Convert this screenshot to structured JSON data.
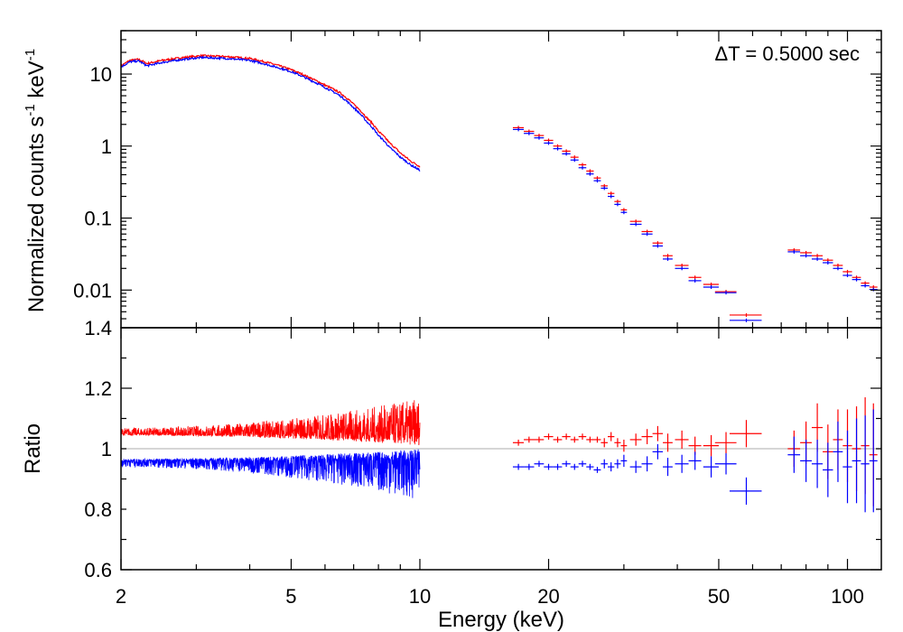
{
  "chart_data": [
    {
      "type": "scatter",
      "panel": "spectrum",
      "ylabel_main": "Normalized counts s",
      "ylabel_sup1": "-1",
      "ylabel_mid": " keV",
      "ylabel_sup2": "-1",
      "annotation": "ΔT = 0.5000 sec",
      "x_scale": "log",
      "y_scale": "log",
      "xlim": [
        2,
        120
      ],
      "ylim": [
        0.003,
        40
      ],
      "yticks": [
        0.01,
        0.1,
        1,
        10
      ],
      "ytick_labels": [
        "0.01",
        "0.1",
        "1",
        "10"
      ],
      "bottom_label": "1.4",
      "colors": {
        "red": "#ff0000",
        "blue": "#0000ff"
      },
      "series": [
        {
          "color": "red",
          "curve_x": [
            2.0,
            2.1,
            2.2,
            2.3,
            2.5,
            2.8,
            3.1,
            3.5,
            4.0,
            4.5,
            5.0,
            5.5,
            6.0,
            6.5,
            7.0,
            7.5,
            8.0,
            8.5,
            9.0,
            9.5,
            10.0
          ],
          "curve_y": [
            13.0,
            15.5,
            16.0,
            14.0,
            15.5,
            17.0,
            18.0,
            17.5,
            16.5,
            14.0,
            11.5,
            9.0,
            7.0,
            5.5,
            3.8,
            2.5,
            1.6,
            1.1,
            0.8,
            0.62,
            0.52
          ],
          "bins_x": [
            17,
            18,
            19,
            20,
            21,
            22,
            23,
            24,
            25,
            26,
            27,
            28,
            29,
            30,
            32,
            34,
            36,
            38,
            41,
            44,
            48,
            52,
            58,
            75,
            80,
            85,
            90,
            95,
            100,
            105,
            110,
            115
          ],
          "bins_xerr": [
            0.5,
            0.5,
            0.5,
            0.5,
            0.5,
            0.5,
            0.5,
            0.5,
            0.5,
            0.5,
            0.5,
            0.5,
            0.5,
            0.5,
            1,
            1,
            1,
            1,
            1.5,
            1.5,
            2,
            3,
            5,
            2.5,
            2.5,
            2.5,
            2.5,
            2.5,
            2.5,
            2.5,
            2.5,
            2.5
          ],
          "bins_y": [
            1.8,
            1.6,
            1.4,
            1.2,
            1.0,
            0.85,
            0.7,
            0.55,
            0.45,
            0.36,
            0.28,
            0.22,
            0.17,
            0.13,
            0.09,
            0.065,
            0.045,
            0.03,
            0.022,
            0.015,
            0.012,
            0.0095,
            0.0045,
            0.036,
            0.033,
            0.03,
            0.026,
            0.022,
            0.018,
            0.015,
            0.0125,
            0.011
          ]
        },
        {
          "color": "blue",
          "curve_x": [
            2.0,
            2.1,
            2.2,
            2.3,
            2.5,
            2.8,
            3.1,
            3.5,
            4.0,
            4.5,
            5.0,
            5.5,
            6.0,
            6.5,
            7.0,
            7.5,
            8.0,
            8.5,
            9.0,
            9.5,
            10.0
          ],
          "curve_y": [
            12.5,
            14.8,
            15.2,
            13.0,
            14.5,
            16.0,
            17.0,
            16.5,
            15.5,
            13.0,
            10.8,
            8.4,
            6.5,
            5.0,
            3.4,
            2.2,
            1.4,
            0.95,
            0.7,
            0.55,
            0.46
          ],
          "bins_x": [
            17,
            18,
            19,
            20,
            21,
            22,
            23,
            24,
            25,
            26,
            27,
            28,
            29,
            30,
            32,
            34,
            36,
            38,
            41,
            44,
            48,
            52,
            58,
            75,
            80,
            85,
            90,
            95,
            100,
            105,
            110,
            115
          ],
          "bins_xerr": [
            0.5,
            0.5,
            0.5,
            0.5,
            0.5,
            0.5,
            0.5,
            0.5,
            0.5,
            0.5,
            0.5,
            0.5,
            0.5,
            0.5,
            1,
            1,
            1,
            1,
            1.5,
            1.5,
            2,
            3,
            5,
            2.5,
            2.5,
            2.5,
            2.5,
            2.5,
            2.5,
            2.5,
            2.5,
            2.5
          ],
          "bins_y": [
            1.7,
            1.5,
            1.3,
            1.1,
            0.92,
            0.78,
            0.64,
            0.5,
            0.41,
            0.33,
            0.26,
            0.2,
            0.155,
            0.12,
            0.082,
            0.06,
            0.041,
            0.027,
            0.02,
            0.0135,
            0.011,
            0.0092,
            0.0038,
            0.034,
            0.03,
            0.027,
            0.024,
            0.02,
            0.016,
            0.014,
            0.0115,
            0.0102
          ]
        }
      ]
    },
    {
      "type": "scatter",
      "panel": "ratio",
      "ylabel": "Ratio",
      "xlabel": "Energy (keV)",
      "x_scale": "log",
      "xlim": [
        2,
        120
      ],
      "ylim": [
        0.6,
        1.4
      ],
      "yticks": [
        0.6,
        0.8,
        1,
        1.2
      ],
      "ytick_labels": [
        "0.6",
        "0.8",
        "1",
        "1.2"
      ],
      "xticks": [
        2,
        5,
        10,
        20,
        50,
        100
      ],
      "xtick_labels": [
        "2",
        "5",
        "10",
        "20",
        "50",
        "100"
      ],
      "reference_line": 1.0,
      "reference_color": "#c8c8c8",
      "band_x_range": [
        2,
        10
      ],
      "series": [
        {
          "color": "red",
          "band_center": 1.05,
          "band_spread_low": 0.03,
          "band_spread_high": 0.09,
          "bins_x": [
            17,
            18,
            19,
            20,
            21,
            22,
            23,
            24,
            25,
            26,
            27,
            28,
            29,
            30,
            32,
            34,
            36,
            38,
            41,
            44,
            48,
            52,
            58,
            75,
            80,
            85,
            90,
            95,
            100,
            105,
            110,
            115
          ],
          "bins_xerr": [
            0.5,
            0.5,
            0.5,
            0.5,
            0.5,
            0.5,
            0.5,
            0.5,
            0.5,
            0.5,
            0.5,
            0.5,
            0.5,
            0.5,
            1,
            1,
            1,
            1,
            1.5,
            1.5,
            2,
            3,
            5,
            2.5,
            2.5,
            2.5,
            2.5,
            2.5,
            2.5,
            2.5,
            2.5,
            2.5
          ],
          "bins_y": [
            1.02,
            1.03,
            1.03,
            1.04,
            1.03,
            1.04,
            1.03,
            1.04,
            1.03,
            1.03,
            1.02,
            1.04,
            1.02,
            1.01,
            1.03,
            1.04,
            1.05,
            1.02,
            1.03,
            1.01,
            1.01,
            1.02,
            1.05,
            1.0,
            1.02,
            1.07,
            0.99,
            1.03,
            1.01,
            1.0,
            1.01,
            0.98
          ],
          "bins_yerr": [
            0.01,
            0.01,
            0.01,
            0.01,
            0.01,
            0.01,
            0.01,
            0.01,
            0.01,
            0.01,
            0.015,
            0.015,
            0.015,
            0.02,
            0.02,
            0.025,
            0.025,
            0.03,
            0.03,
            0.03,
            0.035,
            0.035,
            0.045,
            0.06,
            0.07,
            0.08,
            0.09,
            0.1,
            0.12,
            0.14,
            0.16,
            0.17
          ]
        },
        {
          "color": "blue",
          "band_center": 0.96,
          "band_spread_low": 0.1,
          "band_spread_high": 0.03,
          "bins_x": [
            17,
            18,
            19,
            20,
            21,
            22,
            23,
            24,
            25,
            26,
            27,
            28,
            29,
            30,
            32,
            34,
            36,
            38,
            41,
            44,
            48,
            52,
            58,
            75,
            80,
            85,
            90,
            95,
            100,
            105,
            110,
            115
          ],
          "bins_xerr": [
            0.5,
            0.5,
            0.5,
            0.5,
            0.5,
            0.5,
            0.5,
            0.5,
            0.5,
            0.5,
            0.5,
            0.5,
            0.5,
            0.5,
            1,
            1,
            1,
            1,
            1.5,
            1.5,
            2,
            3,
            5,
            2.5,
            2.5,
            2.5,
            2.5,
            2.5,
            2.5,
            2.5,
            2.5,
            2.5
          ],
          "bins_y": [
            0.94,
            0.94,
            0.95,
            0.94,
            0.94,
            0.95,
            0.94,
            0.95,
            0.94,
            0.93,
            0.95,
            0.94,
            0.95,
            0.96,
            0.94,
            0.95,
            0.99,
            0.94,
            0.95,
            0.96,
            0.94,
            0.95,
            0.86,
            0.98,
            0.96,
            0.95,
            0.93,
            0.99,
            0.94,
            0.96,
            0.95,
            0.96
          ],
          "bins_yerr": [
            0.01,
            0.01,
            0.01,
            0.01,
            0.01,
            0.01,
            0.01,
            0.01,
            0.01,
            0.01,
            0.015,
            0.015,
            0.015,
            0.02,
            0.02,
            0.025,
            0.025,
            0.03,
            0.03,
            0.03,
            0.035,
            0.035,
            0.045,
            0.06,
            0.07,
            0.08,
            0.09,
            0.1,
            0.12,
            0.14,
            0.16,
            0.17
          ]
        }
      ]
    }
  ]
}
